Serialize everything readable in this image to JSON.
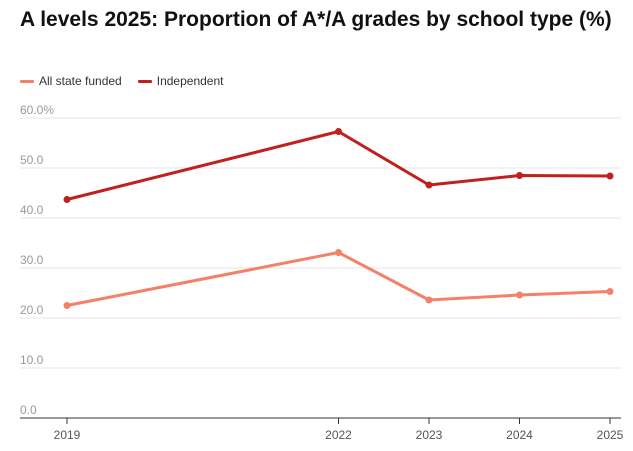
{
  "chart_data": {
    "type": "line",
    "title": "A levels 2025: Proportion of A*/A grades by school type (%)",
    "x": [
      "2019",
      "2022",
      "2023",
      "2024",
      "2025"
    ],
    "ylim": [
      0,
      60
    ],
    "yticks": [
      "0.0",
      "10.0",
      "20.0",
      "30.0",
      "40.0",
      "50.0",
      "60.0%"
    ],
    "grid": true,
    "legend_position": "top-left",
    "series": [
      {
        "name": "All state funded",
        "color": "#f4806a",
        "values": [
          22.5,
          33.1,
          23.6,
          24.6,
          25.3
        ]
      },
      {
        "name": "Independent",
        "color": "#c0211f",
        "values": [
          43.7,
          57.3,
          46.6,
          48.5,
          48.4
        ]
      }
    ]
  }
}
